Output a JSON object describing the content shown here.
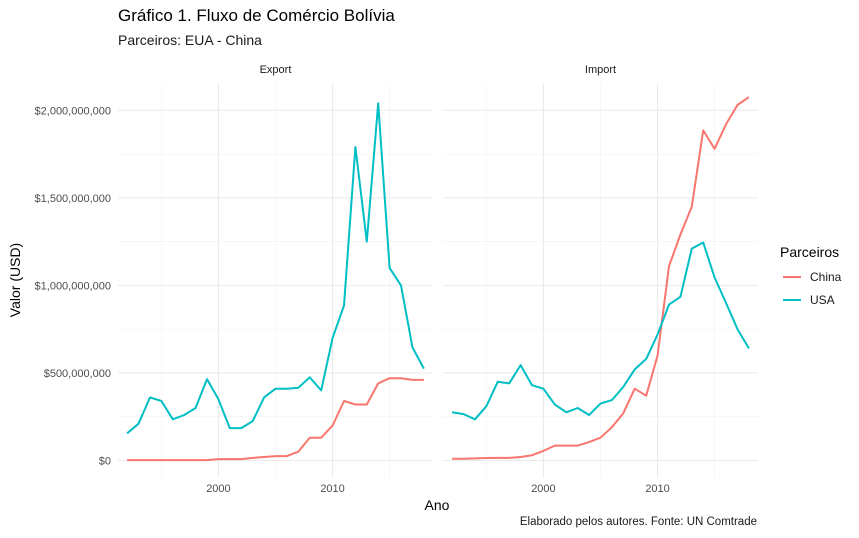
{
  "chart_data": {
    "type": "line",
    "title": "Gráfico 1. Fluxo de Comércio Bolívia",
    "subtitle": "Parceiros: EUA - China",
    "caption": "Elaborado pelos autores. Fonte: UN Comtrade",
    "xlabel": "Ano",
    "ylabel": "Valor (USD)",
    "xlim": [
      1991.2,
      2018.8
    ],
    "ylim": [
      -100000000,
      2150000000
    ],
    "x_ticks": [
      "2000",
      "2010"
    ],
    "y_ticks": [
      "$0",
      "$500,000,000",
      "$1,000,000,000",
      "$1,500,000,000",
      "$2,000,000,000"
    ],
    "grid": true,
    "legend": {
      "title": "Parceiros",
      "position": "right",
      "entries": [
        "China",
        "USA"
      ]
    },
    "colors": {
      "China": "#F8766D",
      "USA": "#00BFC4"
    },
    "x": [
      1992,
      1993,
      1994,
      1995,
      1996,
      1997,
      1998,
      1999,
      2000,
      2001,
      2002,
      2003,
      2004,
      2005,
      2006,
      2007,
      2008,
      2009,
      2010,
      2011,
      2012,
      2013,
      2014,
      2015,
      2016,
      2017,
      2018
    ],
    "panels": [
      {
        "facet": "Export",
        "series": [
          {
            "name": "China",
            "values": [
              2000000,
              2000000,
              2000000,
              2000000,
              2000000,
              2000000,
              2000000,
              2000000,
              8000000,
              8000000,
              8000000,
              15000000,
              20000000,
              25000000,
              25000000,
              50000000,
              130000000,
              130000000,
              200000000,
              340000000,
              320000000,
              320000000,
              440000000,
              470000000,
              470000000,
              460000000,
              460000000
            ]
          },
          {
            "name": "USA",
            "values": [
              155000000,
              210000000,
              360000000,
              340000000,
              235000000,
              260000000,
              300000000,
              465000000,
              350000000,
              185000000,
              185000000,
              225000000,
              360000000,
              410000000,
              410000000,
              415000000,
              475000000,
              400000000,
              700000000,
              885000000,
              1790000000,
              1250000000,
              2040000000,
              1100000000,
              1000000000,
              645000000,
              525000000
            ]
          }
        ]
      },
      {
        "facet": "Import",
        "series": [
          {
            "name": "China",
            "values": [
              10000000,
              10000000,
              12000000,
              14000000,
              15000000,
              15000000,
              20000000,
              30000000,
              55000000,
              85000000,
              85000000,
              85000000,
              105000000,
              130000000,
              190000000,
              270000000,
              410000000,
              370000000,
              600000000,
              1110000000,
              1290000000,
              1450000000,
              1885000000,
              1780000000,
              1920000000,
              2030000000,
              2075000000
            ]
          },
          {
            "name": "USA",
            "values": [
              275000000,
              265000000,
              235000000,
              310000000,
              450000000,
              440000000,
              545000000,
              430000000,
              410000000,
              320000000,
              275000000,
              300000000,
              260000000,
              325000000,
              345000000,
              420000000,
              520000000,
              580000000,
              720000000,
              890000000,
              935000000,
              1210000000,
              1245000000,
              1045000000,
              900000000,
              750000000,
              640000000
            ]
          }
        ]
      }
    ]
  }
}
